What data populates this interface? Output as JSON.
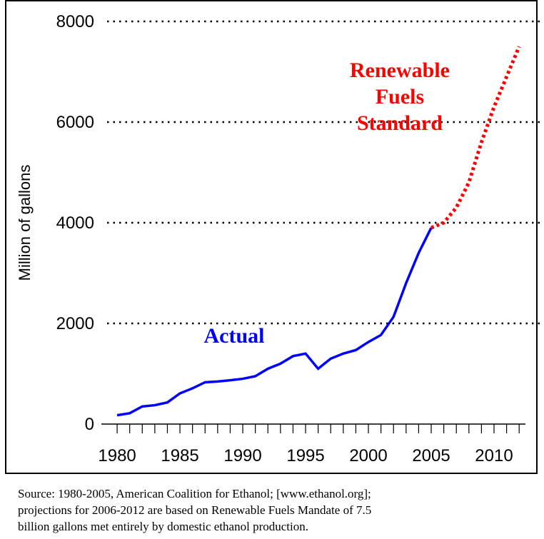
{
  "chart_data": {
    "type": "line",
    "y_label": "Million of gallons",
    "xlim": [
      1979.2,
      2012.5
    ],
    "xticks": [
      1980,
      1985,
      1990,
      1995,
      2000,
      2005,
      2010
    ],
    "xminorticks": [
      1980,
      1981,
      1982,
      1983,
      1984,
      1985,
      1986,
      1987,
      1988,
      1989,
      1990,
      1991,
      1992,
      1993,
      1994,
      1995,
      1996,
      1997,
      1998,
      1999,
      2000,
      2001,
      2002,
      2003,
      2004,
      2005,
      2006,
      2007,
      2008,
      2009,
      2010,
      2011,
      2012
    ],
    "ylim": [
      0,
      8000
    ],
    "yticks": [
      0,
      2000,
      4000,
      6000,
      8000
    ],
    "grid": true,
    "series": [
      {
        "name": "Actual",
        "color": "#0000ff",
        "dashed": false,
        "x": [
          1980,
          1981,
          1982,
          1983,
          1984,
          1985,
          1986,
          1987,
          1988,
          1989,
          1990,
          1991,
          1992,
          1993,
          1994,
          1995,
          1996,
          1997,
          1998,
          1999,
          2000,
          2001,
          2002,
          2003,
          2004,
          2005
        ],
        "values": [
          175,
          215,
          350,
          375,
          430,
          610,
          710,
          830,
          845,
          870,
          900,
          950,
          1100,
          1200,
          1350,
          1400,
          1100,
          1300,
          1400,
          1470,
          1630,
          1770,
          2130,
          2800,
          3400,
          3900
        ]
      },
      {
        "name": "Renewable Fuels Standard",
        "label_lines": [
          "Renewable",
          "Fuels",
          "Standard"
        ],
        "color": "#ff0000",
        "dashed": true,
        "x": [
          2005,
          2006,
          2007,
          2008,
          2009,
          2010,
          2011,
          2012
        ],
        "values": [
          3900,
          4000,
          4300,
          4800,
          5600,
          6300,
          6900,
          7500
        ]
      }
    ],
    "note": [
      "Source: 1980-2005, American Coalition for Ethanol; [www.ethanol.org];",
      "projections for 2006-2012 are based on Renewable Fuels Mandate of 7.5",
      "billion gallons met entirely by domestic ethanol production."
    ]
  }
}
